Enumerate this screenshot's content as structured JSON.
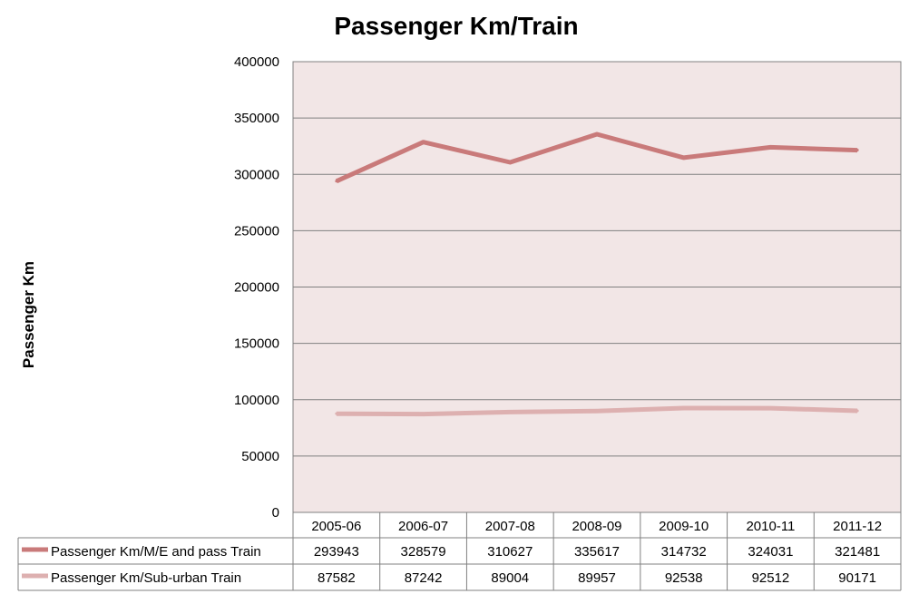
{
  "chart_data": {
    "type": "line",
    "title": "Passenger Km/Train",
    "ylabel": "Passenger Km",
    "xlabel": "",
    "ylim": [
      0,
      400000
    ],
    "yticks": [
      "0",
      "50000",
      "100000",
      "150000",
      "200000",
      "250000",
      "300000",
      "350000",
      "400000"
    ],
    "categories": [
      "2005-06",
      "2006-07",
      "2007-08",
      "2008-09",
      "2009-10",
      "2010-11",
      "2011-12"
    ],
    "grid": true,
    "legend": "data-table",
    "plot_background": "#f2e6e6",
    "series": [
      {
        "name": "Passenger Km/M/E and pass Train",
        "color": "#c97a7a",
        "values": [
          293943,
          328579,
          310627,
          335617,
          314732,
          324031,
          321481
        ],
        "labels": [
          "293943",
          "328579",
          "310627",
          "335617",
          "314732",
          "324031",
          "321481"
        ]
      },
      {
        "name": "Passenger Km/Sub-urban Train",
        "color": "#ddb0b0",
        "values": [
          87582,
          87242,
          89004,
          89957,
          92538,
          92512,
          90171
        ],
        "labels": [
          "87582",
          "87242",
          "89004",
          "89957",
          "92538",
          "92512",
          "90171"
        ]
      }
    ]
  }
}
